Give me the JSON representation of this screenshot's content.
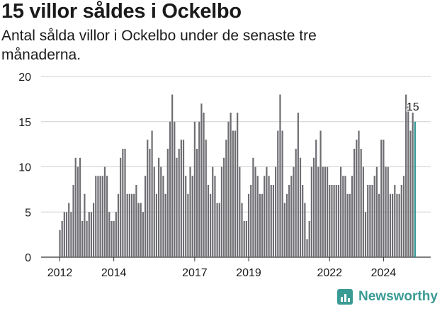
{
  "title": "15 villor såldes i Ockelbo",
  "subtitle": "Antal sålda villor i Ockelbo under de senaste tre månaderna.",
  "logo_text": "Newsworthy",
  "colors": {
    "bar": "#6e6d72",
    "highlight": "#2a948f",
    "grid": "#cfcfcf",
    "brand": "#3a9b95"
  },
  "chart_data": {
    "type": "bar",
    "title": "15 villor såldes i Ockelbo",
    "subtitle": "Antal sålda villor i Ockelbo under de senaste tre månaderna.",
    "xlabel": "",
    "ylabel": "",
    "ylim": [
      0,
      20
    ],
    "yticks": [
      0,
      5,
      10,
      15,
      20
    ],
    "xtick_labels": [
      "2012",
      "2014",
      "2017",
      "2019",
      "2022",
      "2024"
    ],
    "grid": true,
    "highlight_label": "15",
    "values": [
      3,
      4,
      5,
      5,
      6,
      5,
      8,
      11,
      10,
      11,
      4,
      7,
      4,
      5,
      5,
      6,
      9,
      9,
      9,
      9,
      10,
      9,
      5,
      4,
      4,
      5,
      7,
      11,
      12,
      12,
      7,
      7,
      7,
      7,
      8,
      6,
      6,
      5,
      9,
      13,
      12,
      14,
      10,
      7,
      11,
      10,
      9,
      7,
      12,
      15,
      18,
      15,
      11,
      12,
      13,
      13,
      9,
      7,
      10,
      9,
      15,
      12,
      15,
      17,
      16,
      13,
      8,
      7,
      10,
      9,
      6,
      6,
      10,
      11,
      13,
      15,
      16,
      14,
      14,
      16,
      10,
      6,
      4,
      4,
      7,
      8,
      11,
      10,
      9,
      7,
      7,
      9,
      10,
      9,
      8,
      8,
      10,
      14,
      18,
      14,
      6,
      7,
      8,
      9,
      10,
      12,
      16,
      11,
      8,
      6,
      2,
      4,
      10,
      11,
      13,
      10,
      14,
      10,
      10,
      10,
      8,
      8,
      8,
      8,
      8,
      10,
      9,
      9,
      7,
      7,
      9,
      12,
      13,
      14,
      12,
      10,
      5,
      8,
      8,
      8,
      9,
      10,
      7,
      13,
      13,
      10,
      10,
      7,
      7,
      8,
      7,
      7,
      8,
      9,
      18,
      17,
      14,
      16,
      15
    ],
    "highlight_index": 158
  }
}
